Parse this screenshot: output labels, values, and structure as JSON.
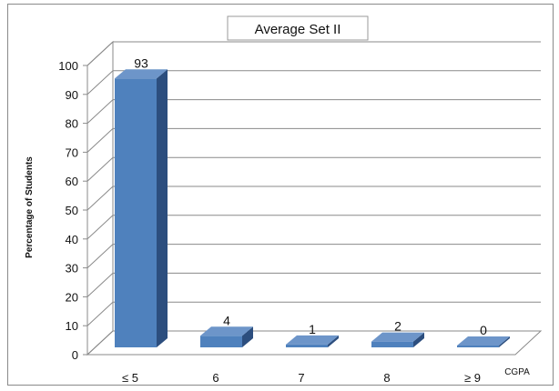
{
  "chart_data": {
    "type": "bar",
    "title": "Average Set II",
    "xlabel": "CGPA",
    "ylabel": "Percentage of Students",
    "categories": [
      "≤ 5",
      "6",
      "7",
      "8",
      "≥ 9"
    ],
    "values": [
      93,
      4,
      1,
      2,
      0
    ],
    "ylim": [
      0,
      100
    ],
    "yticks": [
      0,
      10,
      20,
      30,
      40,
      50,
      60,
      70,
      80,
      90,
      100
    ],
    "grid": true,
    "three_d": true,
    "bar_color": "#4f81bd",
    "bar_side_color": "#2c4e7e",
    "bar_top_color": "#6d95c9"
  }
}
